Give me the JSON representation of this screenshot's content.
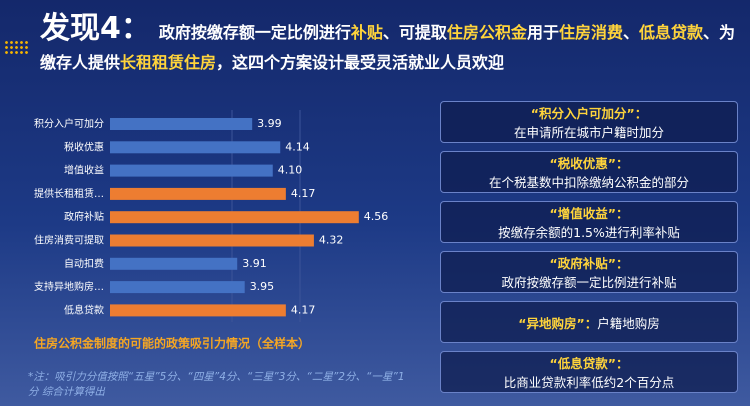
{
  "header": {
    "title": "发现4：",
    "segments": [
      {
        "text": "政府按缴存额一定比例进行",
        "highlight": false
      },
      {
        "text": "补贴",
        "highlight": true
      },
      {
        "text": "、可提取",
        "highlight": false
      },
      {
        "text": "住房公积金",
        "highlight": true
      },
      {
        "text": "用于",
        "highlight": false
      },
      {
        "text": "住房消费",
        "highlight": true
      },
      {
        "text": "、",
        "highlight": false
      },
      {
        "text": "低息贷款",
        "highlight": true
      },
      {
        "text": "、为缴存人提供",
        "highlight": false
      },
      {
        "text": "长租租赁住房",
        "highlight": true
      },
      {
        "text": "，这四个方案设计最受灵活就业人员欢迎",
        "highlight": false
      }
    ]
  },
  "chart_data": {
    "type": "bar",
    "orientation": "horizontal",
    "title": "住房公积金制度的可能的政策吸引力情况（全样本）",
    "categories": [
      "积分入户可加分",
      "税收优惠",
      "增值收益",
      "提供长租租赁…",
      "政府补贴",
      "住房消费可提取",
      "自动扣费",
      "支持异地购房…",
      "低息贷款"
    ],
    "values": [
      3.99,
      4.14,
      4.1,
      4.17,
      4.56,
      4.32,
      3.91,
      3.95,
      4.17
    ],
    "value_labels": [
      "3.99",
      "4.14",
      "4.10",
      "4.17",
      "4.56",
      "4.32",
      "3.91",
      "3.95",
      "4.17"
    ],
    "colors": [
      "#4472c4",
      "#4472c4",
      "#4472c4",
      "#ed7d31",
      "#ed7d31",
      "#ed7d31",
      "#4472c4",
      "#4472c4",
      "#ed7d31"
    ],
    "xlim": [
      3.23,
      4.7
    ],
    "note": "*注：吸引力分值按照“五星”5分、“四星”4分、“三星”3分、“二星”2分、“一星”1分 综合计算得出"
  },
  "cards": [
    {
      "title": "“积分入户可加分”：",
      "body": "在申请所在城市户籍时加分",
      "inline": false
    },
    {
      "title": "“税收优惠”：",
      "body": "在个税基数中扣除缴纳公积金的部分",
      "inline": false
    },
    {
      "title": "“增值收益”：",
      "body": "按缴存余额的1.5%进行利率补贴",
      "inline": false
    },
    {
      "title": "“政府补贴”：",
      "body": "政府按缴存额一定比例进行补贴",
      "inline": false
    },
    {
      "title": "“异地购房”：",
      "body": "户籍地购房",
      "inline": true
    },
    {
      "title": "“低息贷款”：",
      "body": "比商业贷款利率低约2个百分点",
      "inline": false
    }
  ]
}
